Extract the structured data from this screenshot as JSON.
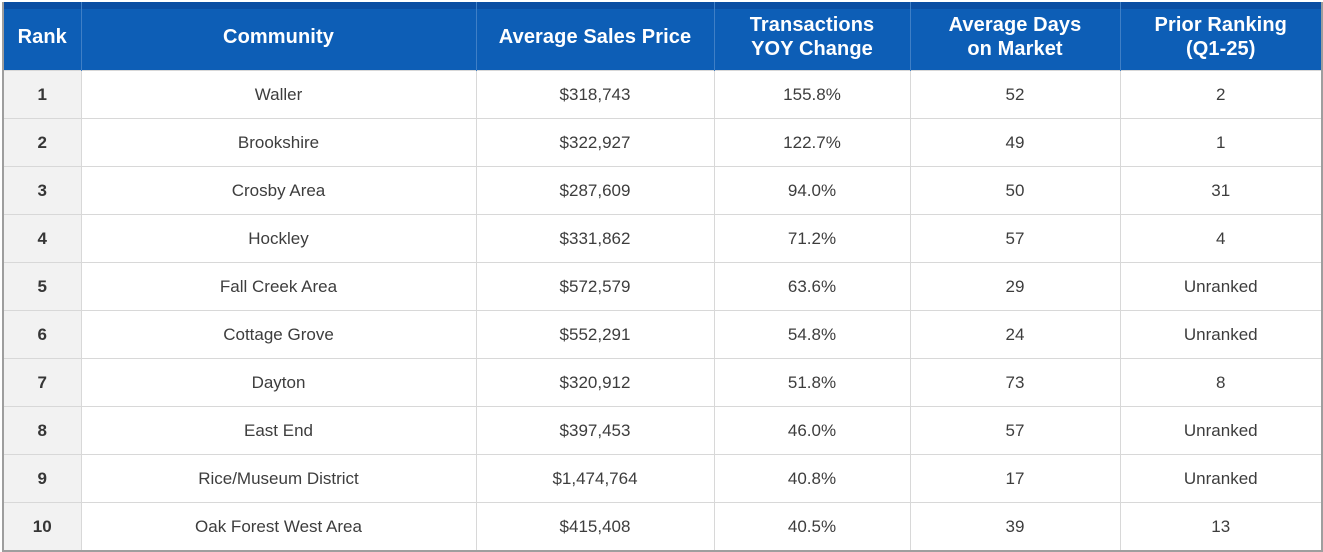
{
  "header": {
    "columns": [
      {
        "id": "rank",
        "label": "Rank"
      },
      {
        "id": "community",
        "label": "Community"
      },
      {
        "id": "avg_sales_price",
        "label": "Average Sales Price"
      },
      {
        "id": "transactions_yoy_change",
        "label": "Transactions\nYOY Change"
      },
      {
        "id": "avg_days_on_market",
        "label": "Average Days\non Market"
      },
      {
        "id": "prior_ranking",
        "label": "Prior Ranking\n(Q1-25)"
      }
    ]
  },
  "rows": [
    {
      "rank": "1",
      "community": "Waller",
      "avg_sales_price": "$318,743",
      "transactions_yoy_change": "155.8%",
      "avg_days_on_market": "52",
      "prior_ranking": "2"
    },
    {
      "rank": "2",
      "community": "Brookshire",
      "avg_sales_price": "$322,927",
      "transactions_yoy_change": "122.7%",
      "avg_days_on_market": "49",
      "prior_ranking": "1"
    },
    {
      "rank": "3",
      "community": "Crosby Area",
      "avg_sales_price": "$287,609",
      "transactions_yoy_change": "94.0%",
      "avg_days_on_market": "50",
      "prior_ranking": "31"
    },
    {
      "rank": "4",
      "community": "Hockley",
      "avg_sales_price": "$331,862",
      "transactions_yoy_change": "71.2%",
      "avg_days_on_market": "57",
      "prior_ranking": "4"
    },
    {
      "rank": "5",
      "community": "Fall Creek Area",
      "avg_sales_price": "$572,579",
      "transactions_yoy_change": "63.6%",
      "avg_days_on_market": "29",
      "prior_ranking": "Unranked"
    },
    {
      "rank": "6",
      "community": "Cottage Grove",
      "avg_sales_price": "$552,291",
      "transactions_yoy_change": "54.8%",
      "avg_days_on_market": "24",
      "prior_ranking": "Unranked"
    },
    {
      "rank": "7",
      "community": "Dayton",
      "avg_sales_price": "$320,912",
      "transactions_yoy_change": "51.8%",
      "avg_days_on_market": "73",
      "prior_ranking": "8"
    },
    {
      "rank": "8",
      "community": "East End",
      "avg_sales_price": "$397,453",
      "transactions_yoy_change": "46.0%",
      "avg_days_on_market": "57",
      "prior_ranking": "Unranked"
    },
    {
      "rank": "9",
      "community": "Rice/Museum District",
      "avg_sales_price": "$1,474,764",
      "transactions_yoy_change": "40.8%",
      "avg_days_on_market": "17",
      "prior_ranking": "Unranked"
    },
    {
      "rank": "10",
      "community": "Oak Forest West Area",
      "avg_sales_price": "$415,408",
      "transactions_yoy_change": "40.5%",
      "avg_days_on_market": "39",
      "prior_ranking": "13"
    }
  ],
  "colors": {
    "header_bg": "#0d5eb6",
    "header_top_bar": "#0a4ea3",
    "header_text": "#ffffff",
    "rank_column_bg": "#f2f2f2",
    "grid_line": "#d8d8d8",
    "outer_border": "#9e9e9e",
    "body_text": "#3d3d3d"
  }
}
